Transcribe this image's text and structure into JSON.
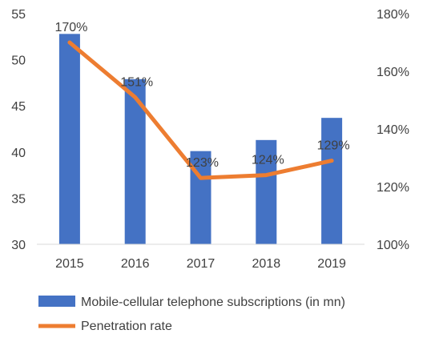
{
  "chart_data": {
    "type": "bar",
    "categories": [
      "2015",
      "2016",
      "2017",
      "2018",
      "2019"
    ],
    "series": [
      {
        "name": "Mobile-cellular telephone subscriptions (in mn)",
        "kind": "bar",
        "axis": "left",
        "color": "#4472C4",
        "values": [
          52.8,
          47.9,
          40.1,
          41.3,
          43.7
        ]
      },
      {
        "name": "Penetration rate",
        "kind": "line",
        "axis": "right",
        "color": "#ED7D31",
        "values": [
          170,
          151,
          123,
          124,
          129
        ],
        "labels": [
          "170%",
          "151%",
          "123%",
          "124%",
          "129%"
        ]
      }
    ],
    "y_left": {
      "min": 30,
      "max": 55,
      "ticks": [
        "30",
        "35",
        "40",
        "45",
        "50",
        "55"
      ]
    },
    "y_right": {
      "min": 100,
      "max": 180,
      "ticks": [
        "100%",
        "120%",
        "140%",
        "160%",
        "180%"
      ]
    },
    "grid": false,
    "legend_position": "bottom"
  }
}
